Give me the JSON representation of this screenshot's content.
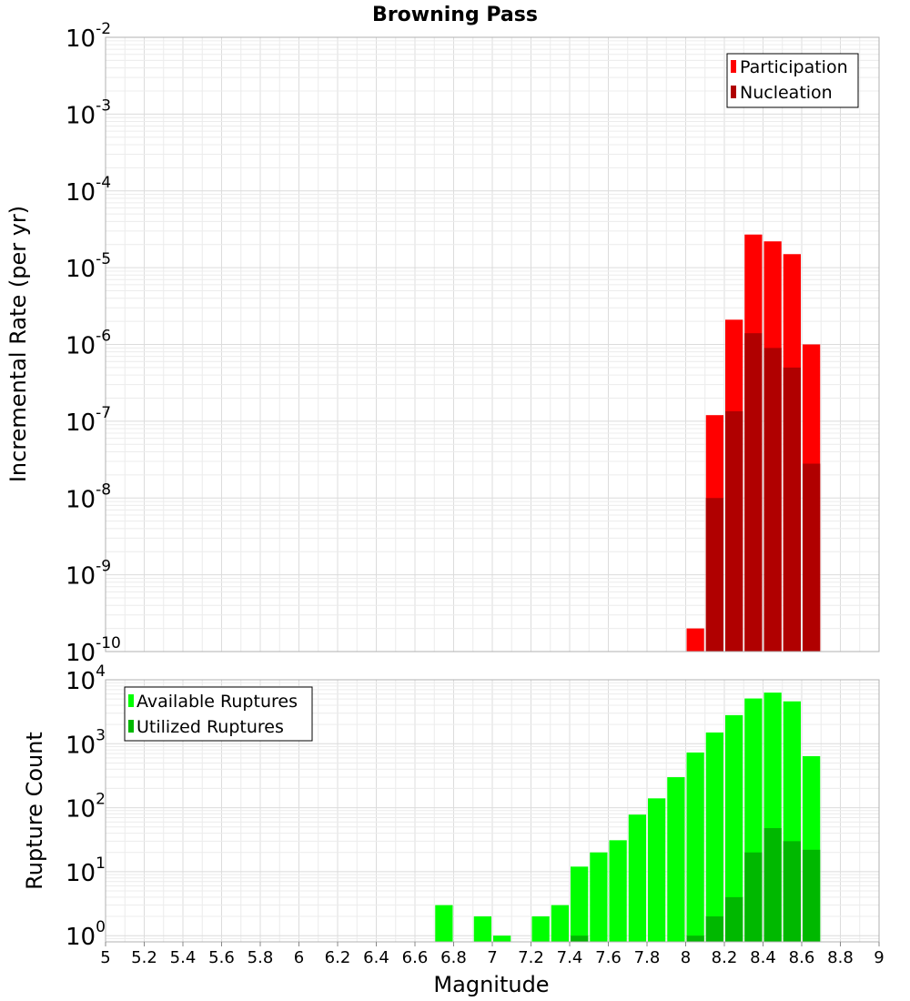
{
  "chart_data": [
    {
      "type": "bar",
      "title": "Browning Pass",
      "xlabel": "Magnitude",
      "ylabel": "Incremental Rate (per yr)",
      "yscale": "log",
      "ylim": [
        1e-10,
        0.01
      ],
      "xlim": [
        5,
        9
      ],
      "legend_position": "top-right",
      "y_tick_exponents": [
        "-10",
        "-9",
        "-8",
        "-7",
        "-6",
        "-5",
        "-4",
        "-3",
        "-2"
      ],
      "y_tick_base": "10",
      "series": [
        {
          "name": "Participation",
          "color": "#ff0000",
          "x": [
            8.05,
            8.15,
            8.25,
            8.35,
            8.45,
            8.55,
            8.65
          ],
          "values": [
            2e-10,
            1.2e-07,
            2.1e-06,
            2.7e-05,
            2.2e-05,
            1.5e-05,
            1e-06
          ]
        },
        {
          "name": "Nucleation",
          "color": "#b00000",
          "x": [
            8.05,
            8.15,
            8.25,
            8.35,
            8.45,
            8.55,
            8.65
          ],
          "values": [
            0,
            1e-08,
            1.35e-07,
            1.4e-06,
            9e-07,
            5e-07,
            2.8e-08
          ]
        }
      ]
    },
    {
      "type": "bar",
      "xlabel": "Magnitude",
      "ylabel": "Rupture Count",
      "yscale": "log",
      "ylim": [
        0.8,
        10000
      ],
      "xlim": [
        5,
        9
      ],
      "legend_position": "top-left",
      "y_tick_exponents": [
        "0",
        "1",
        "2",
        "3",
        "4"
      ],
      "y_tick_base": "10",
      "x_tick_labels": [
        "5",
        "5.2",
        "5.4",
        "5.6",
        "5.8",
        "6",
        "6.2",
        "6.4",
        "6.6",
        "6.8",
        "7",
        "7.2",
        "7.4",
        "7.6",
        "7.8",
        "8",
        "8.2",
        "8.4",
        "8.6",
        "8.8",
        "9"
      ],
      "series": [
        {
          "name": "Available Ruptures",
          "color": "#00ff00",
          "x": [
            6.75,
            6.95,
            7.05,
            7.25,
            7.35,
            7.45,
            7.55,
            7.65,
            7.75,
            7.85,
            7.95,
            8.05,
            8.15,
            8.25,
            8.35,
            8.45,
            8.55,
            8.65
          ],
          "values": [
            3,
            2,
            1,
            2,
            3,
            12,
            20,
            31,
            78,
            140,
            300,
            730,
            1500,
            2800,
            5100,
            6300,
            4600,
            640
          ]
        },
        {
          "name": "Utilized Ruptures",
          "color": "#00b800",
          "x": [
            7.45,
            8.05,
            8.15,
            8.25,
            8.35,
            8.45,
            8.55,
            8.65
          ],
          "values": [
            1,
            1,
            2,
            4,
            20,
            48,
            30,
            22
          ]
        }
      ]
    }
  ]
}
